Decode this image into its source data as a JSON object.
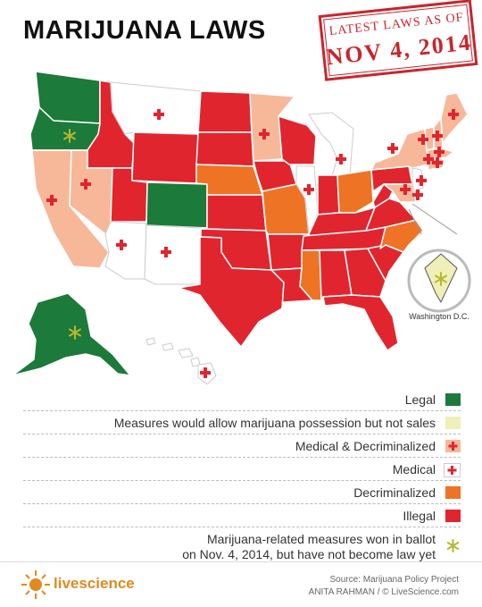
{
  "title": "MARIJUANA LAWS",
  "stamp": {
    "line1": "LATEST LAWS AS OF",
    "line2": "NOV 4, 2014"
  },
  "colors": {
    "legal": "#1c7a3a",
    "measures_possession": "#eef0b8",
    "medical_decriminalized": "#f7b89a",
    "medical": "#ffffff",
    "decriminalized": "#ef7325",
    "illegal": "#e1252e",
    "cross": "#e1252e",
    "asterisk": "#b5b830",
    "logo": "#e08a1e"
  },
  "map": {
    "dc_label": "Washington D.C.",
    "categories": {
      "legal": [
        "WA",
        "OR",
        "CO",
        "AK"
      ],
      "medical_decriminalized": [
        "CA",
        "NV",
        "MN",
        "NY",
        "VT",
        "NH",
        "MA",
        "CT",
        "RI",
        "ME",
        "DE",
        "MD"
      ],
      "medical": [
        "MT",
        "AZ",
        "NM",
        "MI",
        "IL",
        "NJ",
        "HI"
      ],
      "decriminalized": [
        "NE",
        "MO",
        "MS",
        "OH",
        "NC"
      ],
      "illegal": [
        "ID",
        "UT",
        "WY",
        "ND",
        "SD",
        "KS",
        "OK",
        "TX",
        "IA",
        "WI",
        "AR",
        "LA",
        "IN",
        "KY",
        "TN",
        "AL",
        "GA",
        "FL",
        "SC",
        "WV",
        "VA",
        "PA"
      ],
      "measures_possession": [
        "DC"
      ]
    },
    "ballot_wins": [
      "OR",
      "AK",
      "DC"
    ]
  },
  "legend": [
    {
      "key": "legal",
      "label": "Legal",
      "icon": "swatch"
    },
    {
      "key": "measures_possession",
      "label": "Measures would allow marijuana possession but not sales",
      "icon": "swatch"
    },
    {
      "key": "medical_decriminalized",
      "label": "Medical & Decriminalized",
      "icon": "cross-swatch"
    },
    {
      "key": "medical",
      "label": "Medical",
      "icon": "cross-swatch"
    },
    {
      "key": "decriminalized",
      "label": "Decriminalized",
      "icon": "swatch"
    },
    {
      "key": "illegal",
      "label": "Illegal",
      "icon": "swatch"
    },
    {
      "key": "ballot",
      "label_line1": "Marijuana-related measures won in ballot",
      "label_line2": "on Nov. 4, 2014, but have not become law yet",
      "icon": "asterisk"
    }
  ],
  "footer": {
    "logo": "livescience",
    "source": "Source: Marijuana Policy Project",
    "credit": "ANITA RAHMAN / © LiveScience.com"
  }
}
